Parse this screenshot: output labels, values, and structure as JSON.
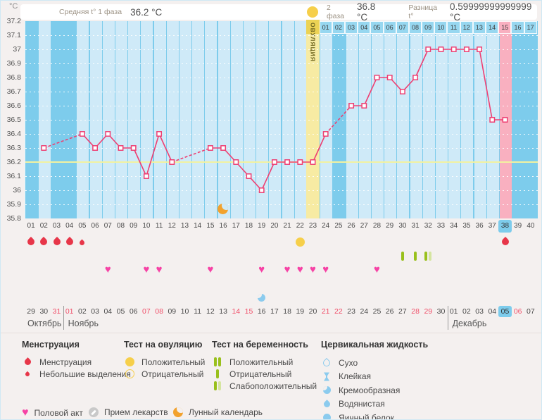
{
  "header": {
    "y_unit": "°C",
    "phase1_label": "Средняя t° 1 фаза",
    "phase1_value": "36.2 °C",
    "phase2_label": "2 фаза",
    "phase2_value": "36.8 °C",
    "diff_label": "Разница t°",
    "diff_value": "0.59999999999999 °C"
  },
  "icons": {
    "heart": "♥"
  },
  "chart_data": {
    "type": "line",
    "title": "Basal body temperature chart",
    "ylabel": "°C",
    "ylim": [
      35.8,
      37.2
    ],
    "yticks": [
      "37.2",
      "37.1",
      "37",
      "36.9",
      "36.8",
      "36.7",
      "36.6",
      "36.5",
      "36.4",
      "36.3",
      "36.2",
      "36.1",
      "36",
      "35.9",
      "35.8"
    ],
    "x_labels": [
      "01",
      "02",
      "03",
      "04",
      "05",
      "06",
      "07",
      "08",
      "09",
      "10",
      "11",
      "12",
      "13",
      "14",
      "15",
      "16",
      "17",
      "18",
      "19",
      "20",
      "21",
      "22",
      "23",
      "24",
      "25",
      "26",
      "27",
      "28",
      "29",
      "30",
      "31",
      "32",
      "33",
      "34",
      "35",
      "36",
      "37",
      "38",
      "39",
      "40"
    ],
    "temperatures": [
      [
        2,
        36.3
      ],
      [
        5,
        36.4
      ],
      [
        6,
        36.3
      ],
      [
        7,
        36.4
      ],
      [
        8,
        36.3
      ],
      [
        9,
        36.3
      ],
      [
        10,
        36.1
      ],
      [
        11,
        36.4
      ],
      [
        12,
        36.2
      ],
      [
        15,
        36.3
      ],
      [
        16,
        36.3
      ],
      [
        17,
        36.2
      ],
      [
        18,
        36.1
      ],
      [
        19,
        36.0
      ],
      [
        20,
        36.2
      ],
      [
        21,
        36.2
      ],
      [
        22,
        36.2
      ],
      [
        23,
        36.2
      ],
      [
        24,
        36.4
      ],
      [
        26,
        36.6
      ],
      [
        27,
        36.6
      ],
      [
        28,
        36.8
      ],
      [
        29,
        36.8
      ],
      [
        30,
        36.7
      ],
      [
        31,
        36.8
      ],
      [
        32,
        37.0
      ],
      [
        33,
        37.0
      ],
      [
        34,
        37.0
      ],
      [
        35,
        37.0
      ],
      [
        36,
        37.0
      ],
      [
        37,
        36.5
      ],
      [
        38,
        36.5
      ]
    ],
    "gap_segment_style": "dashed",
    "coverline": 36.2,
    "bar_days": [
      2,
      5,
      6,
      7,
      8,
      9,
      10,
      11,
      12,
      13,
      14,
      15,
      16,
      17,
      18,
      19,
      20,
      21,
      22,
      24,
      26,
      27,
      28,
      29,
      30,
      31,
      32,
      33,
      34,
      35,
      36,
      37
    ],
    "ovulation_day": 23,
    "ovulation_band_label": "ОВУЛЯЦИЯ",
    "highlight_day": 38,
    "current_day": 38,
    "dpo_row": {
      "start_day": 24,
      "labels": [
        "01",
        "02",
        "03",
        "04",
        "05",
        "06",
        "07",
        "08",
        "09",
        "10",
        "11",
        "12",
        "13",
        "14",
        "15",
        "16",
        "17"
      ],
      "highlight_label": "15"
    },
    "moon_day": 16,
    "colors": {
      "background": "#7dccec",
      "day_bar": "#cfeaf8",
      "line": "#ee3f72",
      "coverline": "#f2f2a0",
      "ovulation_band": "#f7eba3",
      "highlight_column": "#f9b0c0",
      "menstruation": "#e73649",
      "heart": "#f642a5",
      "ovulation_test": "#f6cf4a",
      "pregnancy_test": "#99c01c",
      "cervical_fluid": "#8bcbee",
      "moon": "#f2a22e",
      "weekend_date": "#f0506a"
    }
  },
  "events": {
    "menstruation_days": [
      1,
      2,
      3,
      4,
      38
    ],
    "spotting_days": [
      5
    ],
    "ovulation_test_positive_days": [
      22
    ],
    "pregnancy_test_negative_days": [
      30,
      31
    ],
    "pregnancy_test_weak_positive_days": [
      32
    ],
    "intercourse_days": [
      7,
      10,
      11,
      15,
      19,
      21,
      22,
      23,
      24,
      28
    ],
    "cervical_creamy_days": [
      19
    ],
    "lunar_days": [
      16
    ]
  },
  "calendar": {
    "dates": [
      "29",
      "30",
      "31",
      "01",
      "02",
      "03",
      "04",
      "05",
      "06",
      "07",
      "08",
      "09",
      "10",
      "11",
      "12",
      "13",
      "14",
      "15",
      "16",
      "17",
      "18",
      "19",
      "20",
      "21",
      "22",
      "23",
      "24",
      "25",
      "26",
      "27",
      "28",
      "29",
      "30",
      "01",
      "02",
      "03",
      "04",
      "05",
      "06",
      "07"
    ],
    "red_days": [
      3,
      4,
      10,
      11,
      17,
      18,
      24,
      25,
      31,
      32,
      39
    ],
    "today_day": 38,
    "months": [
      {
        "name": "Октябрь",
        "start_day": 1
      },
      {
        "name": "Ноябрь",
        "start_day": 4
      },
      {
        "name": "Декабрь",
        "start_day": 34
      }
    ]
  },
  "legend": {
    "menstruation": {
      "title": "Менструация",
      "items": [
        {
          "icon": "drop-large-icon",
          "label": "Менструация"
        },
        {
          "icon": "drop-small-icon",
          "label": "Небольшие выделения"
        }
      ]
    },
    "ovulation_test": {
      "title": "Тест на овуляцию",
      "items": [
        {
          "icon": "circle-filled-icon",
          "label": "Положительный"
        },
        {
          "icon": "circle-outline-icon",
          "label": "Отрицательный"
        }
      ]
    },
    "pregnancy_test": {
      "title": "Тест на беременность",
      "items": [
        {
          "icon": "double-bar-icon",
          "label": "Положительный"
        },
        {
          "icon": "single-bar-icon",
          "label": "Отрицательный"
        },
        {
          "icon": "weak-double-bar-icon",
          "label": "Слабоположительный"
        }
      ]
    },
    "cervical_fluid": {
      "title": "Цервикальная жидкость",
      "items": [
        {
          "icon": "drop-outline-icon",
          "label": "Сухо"
        },
        {
          "icon": "hourglass-icon",
          "label": "Клейкая"
        },
        {
          "icon": "comma-icon",
          "label": "Кремообразная"
        },
        {
          "icon": "drop-filled-icon",
          "label": "Водянистая"
        },
        {
          "icon": "circle-blue-icon",
          "label": "Яичный белок"
        }
      ]
    },
    "misc": {
      "items": [
        {
          "icon": "heart-icon",
          "label": "Половой акт"
        },
        {
          "icon": "pill-icon",
          "label": "Прием лекарств"
        },
        {
          "icon": "moon-icon",
          "label": "Лунный календарь"
        }
      ]
    }
  }
}
